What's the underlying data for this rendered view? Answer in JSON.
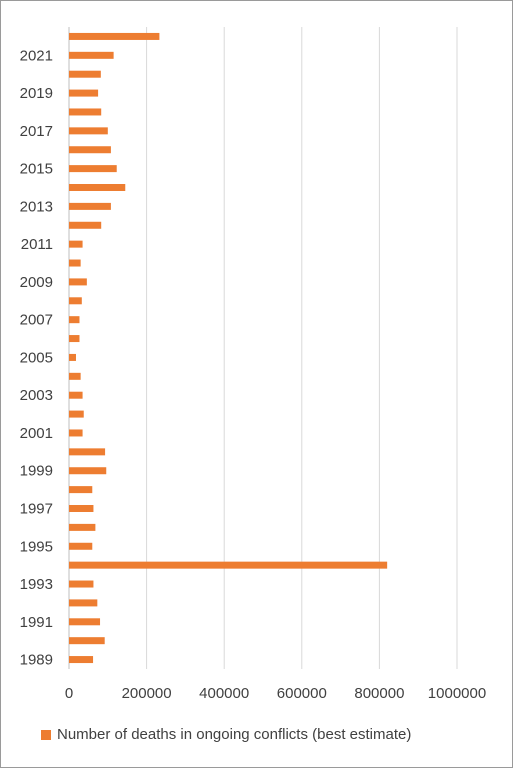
{
  "chart_data": {
    "type": "bar",
    "orientation": "horizontal",
    "categories": [
      "1989",
      "1990",
      "1991",
      "1992",
      "1993",
      "1994",
      "1995",
      "1996",
      "1997",
      "1998",
      "1999",
      "2000",
      "2001",
      "2002",
      "2003",
      "2004",
      "2005",
      "2006",
      "2007",
      "2008",
      "2009",
      "2010",
      "2011",
      "2012",
      "2013",
      "2014",
      "2015",
      "2016",
      "2017",
      "2018",
      "2019",
      "2020",
      "2021",
      "2022"
    ],
    "category_labels": [
      "1989",
      "",
      "1991",
      "",
      "1993",
      "",
      "1995",
      "",
      "1997",
      "",
      "1999",
      "",
      "2001",
      "",
      "2003",
      "",
      "2005",
      "",
      "2007",
      "",
      "2009",
      "",
      "2011",
      "",
      "2013",
      "",
      "2015",
      "",
      "2017",
      "",
      "2019",
      "",
      "2021",
      ""
    ],
    "series": [
      {
        "name": "Number of deaths in ongoing conflicts (best estimate)",
        "color": "#ed7d31",
        "values": [
          62000,
          92000,
          80000,
          73000,
          63000,
          820000,
          60000,
          68000,
          63000,
          60000,
          96000,
          93000,
          35000,
          38000,
          35000,
          30000,
          18000,
          27000,
          27000,
          33000,
          46000,
          30000,
          35000,
          83000,
          108000,
          145000,
          123000,
          108000,
          100000,
          83000,
          75000,
          82000,
          115000,
          233000
        ]
      }
    ],
    "x_ticks": [
      "0",
      "200000",
      "400000",
      "600000",
      "800000",
      "1000000"
    ],
    "xlim": [
      0,
      1000000
    ],
    "grid": "vertical",
    "legend": "bottom",
    "title": "",
    "xlabel": "",
    "ylabel": ""
  }
}
